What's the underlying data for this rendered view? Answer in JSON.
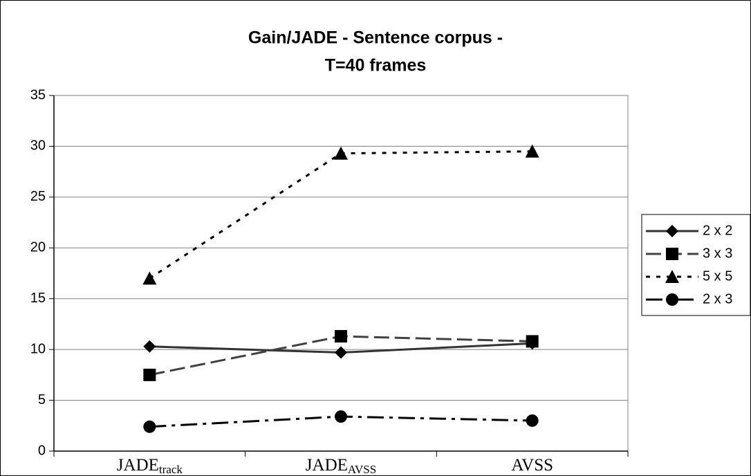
{
  "chart_data": {
    "type": "line",
    "title": [
      "Gain/JADE - Sentence corpus -",
      "T=40 frames"
    ],
    "categories": [
      {
        "label": "JADE",
        "subscript": "track"
      },
      {
        "label": "JADE",
        "subscript": "AVSS"
      },
      {
        "label": "AVSS"
      }
    ],
    "series": [
      {
        "name": "2 x 2",
        "color": "#333333",
        "line_style": "solid",
        "marker": "diamond",
        "values": [
          10.3,
          9.7,
          10.6
        ]
      },
      {
        "name": "3 x 3",
        "color": "#404040",
        "line_style": "dashed",
        "marker": "square",
        "values": [
          7.5,
          11.3,
          10.8
        ]
      },
      {
        "name": "5 x 5",
        "color": "#000000",
        "line_style": "dotted",
        "marker": "triangle",
        "values": [
          17.0,
          29.3,
          29.5
        ]
      },
      {
        "name": "2 x 3",
        "color": "#000000",
        "line_style": "dashdot",
        "marker": "circle",
        "values": [
          2.4,
          3.4,
          3.0
        ]
      }
    ],
    "ylim": [
      0,
      35
    ],
    "yticks": [
      0,
      5,
      10,
      15,
      20,
      25,
      30,
      35
    ],
    "grid": true,
    "legend": "right"
  }
}
